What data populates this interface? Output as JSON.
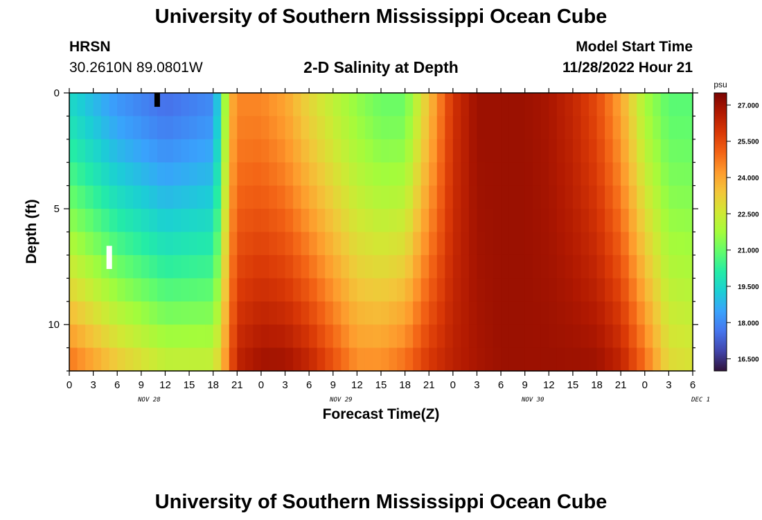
{
  "header": {
    "title": "University of Southern Mississippi Ocean Cube",
    "station": "HRSN",
    "coords": "30.2610N  89.0801W",
    "plot_title": "2-D Salinity at Depth",
    "model_label": "Model Start Time",
    "model_time": "11/28/2022 Hour 21"
  },
  "footer": {
    "title": "University of Southern Mississippi Ocean Cube"
  },
  "colors": {
    "scale": [
      "#30123b",
      "#4145ab",
      "#4675ed",
      "#39a2fc",
      "#1bcfd4",
      "#24eca6",
      "#61fc6c",
      "#a4fc3b",
      "#d1e834",
      "#f3c63a",
      "#fe9b2d",
      "#f36315",
      "#d93806",
      "#b11901",
      "#7a0402"
    ]
  },
  "chart_data": {
    "type": "heatmap",
    "title": "2-D Salinity at Depth",
    "xlabel": "Forecast Time(Z)",
    "ylabel": "Depth (ft)",
    "x_ticks": [
      "0",
      "3",
      "6",
      "9",
      "12",
      "15",
      "18",
      "21",
      "0",
      "3",
      "6",
      "9",
      "12",
      "15",
      "18",
      "21",
      "0",
      "3",
      "6",
      "9",
      "12",
      "15",
      "18",
      "21",
      "0",
      "3",
      "6"
    ],
    "day_labels": [
      {
        "label": "NOV 28",
        "hour": 10
      },
      {
        "label": "NOV 29",
        "hour": 34
      },
      {
        "label": "NOV 30",
        "hour": 58
      },
      {
        "label": "DEC 1",
        "hour": 79
      }
    ],
    "x_range_hours": [
      0,
      78
    ],
    "y_range_ft": [
      0,
      12
    ],
    "y_ticks": [
      "0",
      "5",
      "10"
    ],
    "colorbar": {
      "unit": "psu",
      "min": 16.0,
      "max": 27.5,
      "ticks": [
        "27.000",
        "25.500",
        "24.000",
        "22.500",
        "21.000",
        "19.500",
        "18.000",
        "16.500"
      ]
    },
    "surface_salinity_profile": {
      "hours": [
        0,
        6,
        12,
        18,
        19,
        20,
        21,
        24,
        27,
        30,
        33,
        36,
        39,
        42,
        45,
        48,
        51,
        54,
        57,
        60,
        63,
        66,
        69,
        72,
        75,
        78
      ],
      "surface_psu": [
        19.5,
        18.2,
        17.5,
        18.0,
        20.0,
        23.5,
        24.5,
        24.5,
        24.0,
        23.0,
        22.2,
        21.5,
        21.0,
        21.0,
        23.5,
        26.0,
        27.0,
        27.0,
        27.0,
        26.8,
        26.3,
        25.5,
        24.0,
        21.8,
        20.8,
        20.8
      ],
      "bottom_psu": [
        25.0,
        23.5,
        22.5,
        22.5,
        23.5,
        25.0,
        26.5,
        27.0,
        27.0,
        26.5,
        25.5,
        24.5,
        24.5,
        25.0,
        26.0,
        26.5,
        26.8,
        27.0,
        27.0,
        27.0,
        27.0,
        27.0,
        26.5,
        25.0,
        23.0,
        22.8
      ]
    },
    "masked_cells": [
      {
        "hour": 11,
        "depth_from": 0.0,
        "depth_to": 0.6,
        "color": "black"
      },
      {
        "hour": 5,
        "depth_from": 6.6,
        "depth_to": 7.6,
        "color": "white"
      }
    ]
  }
}
